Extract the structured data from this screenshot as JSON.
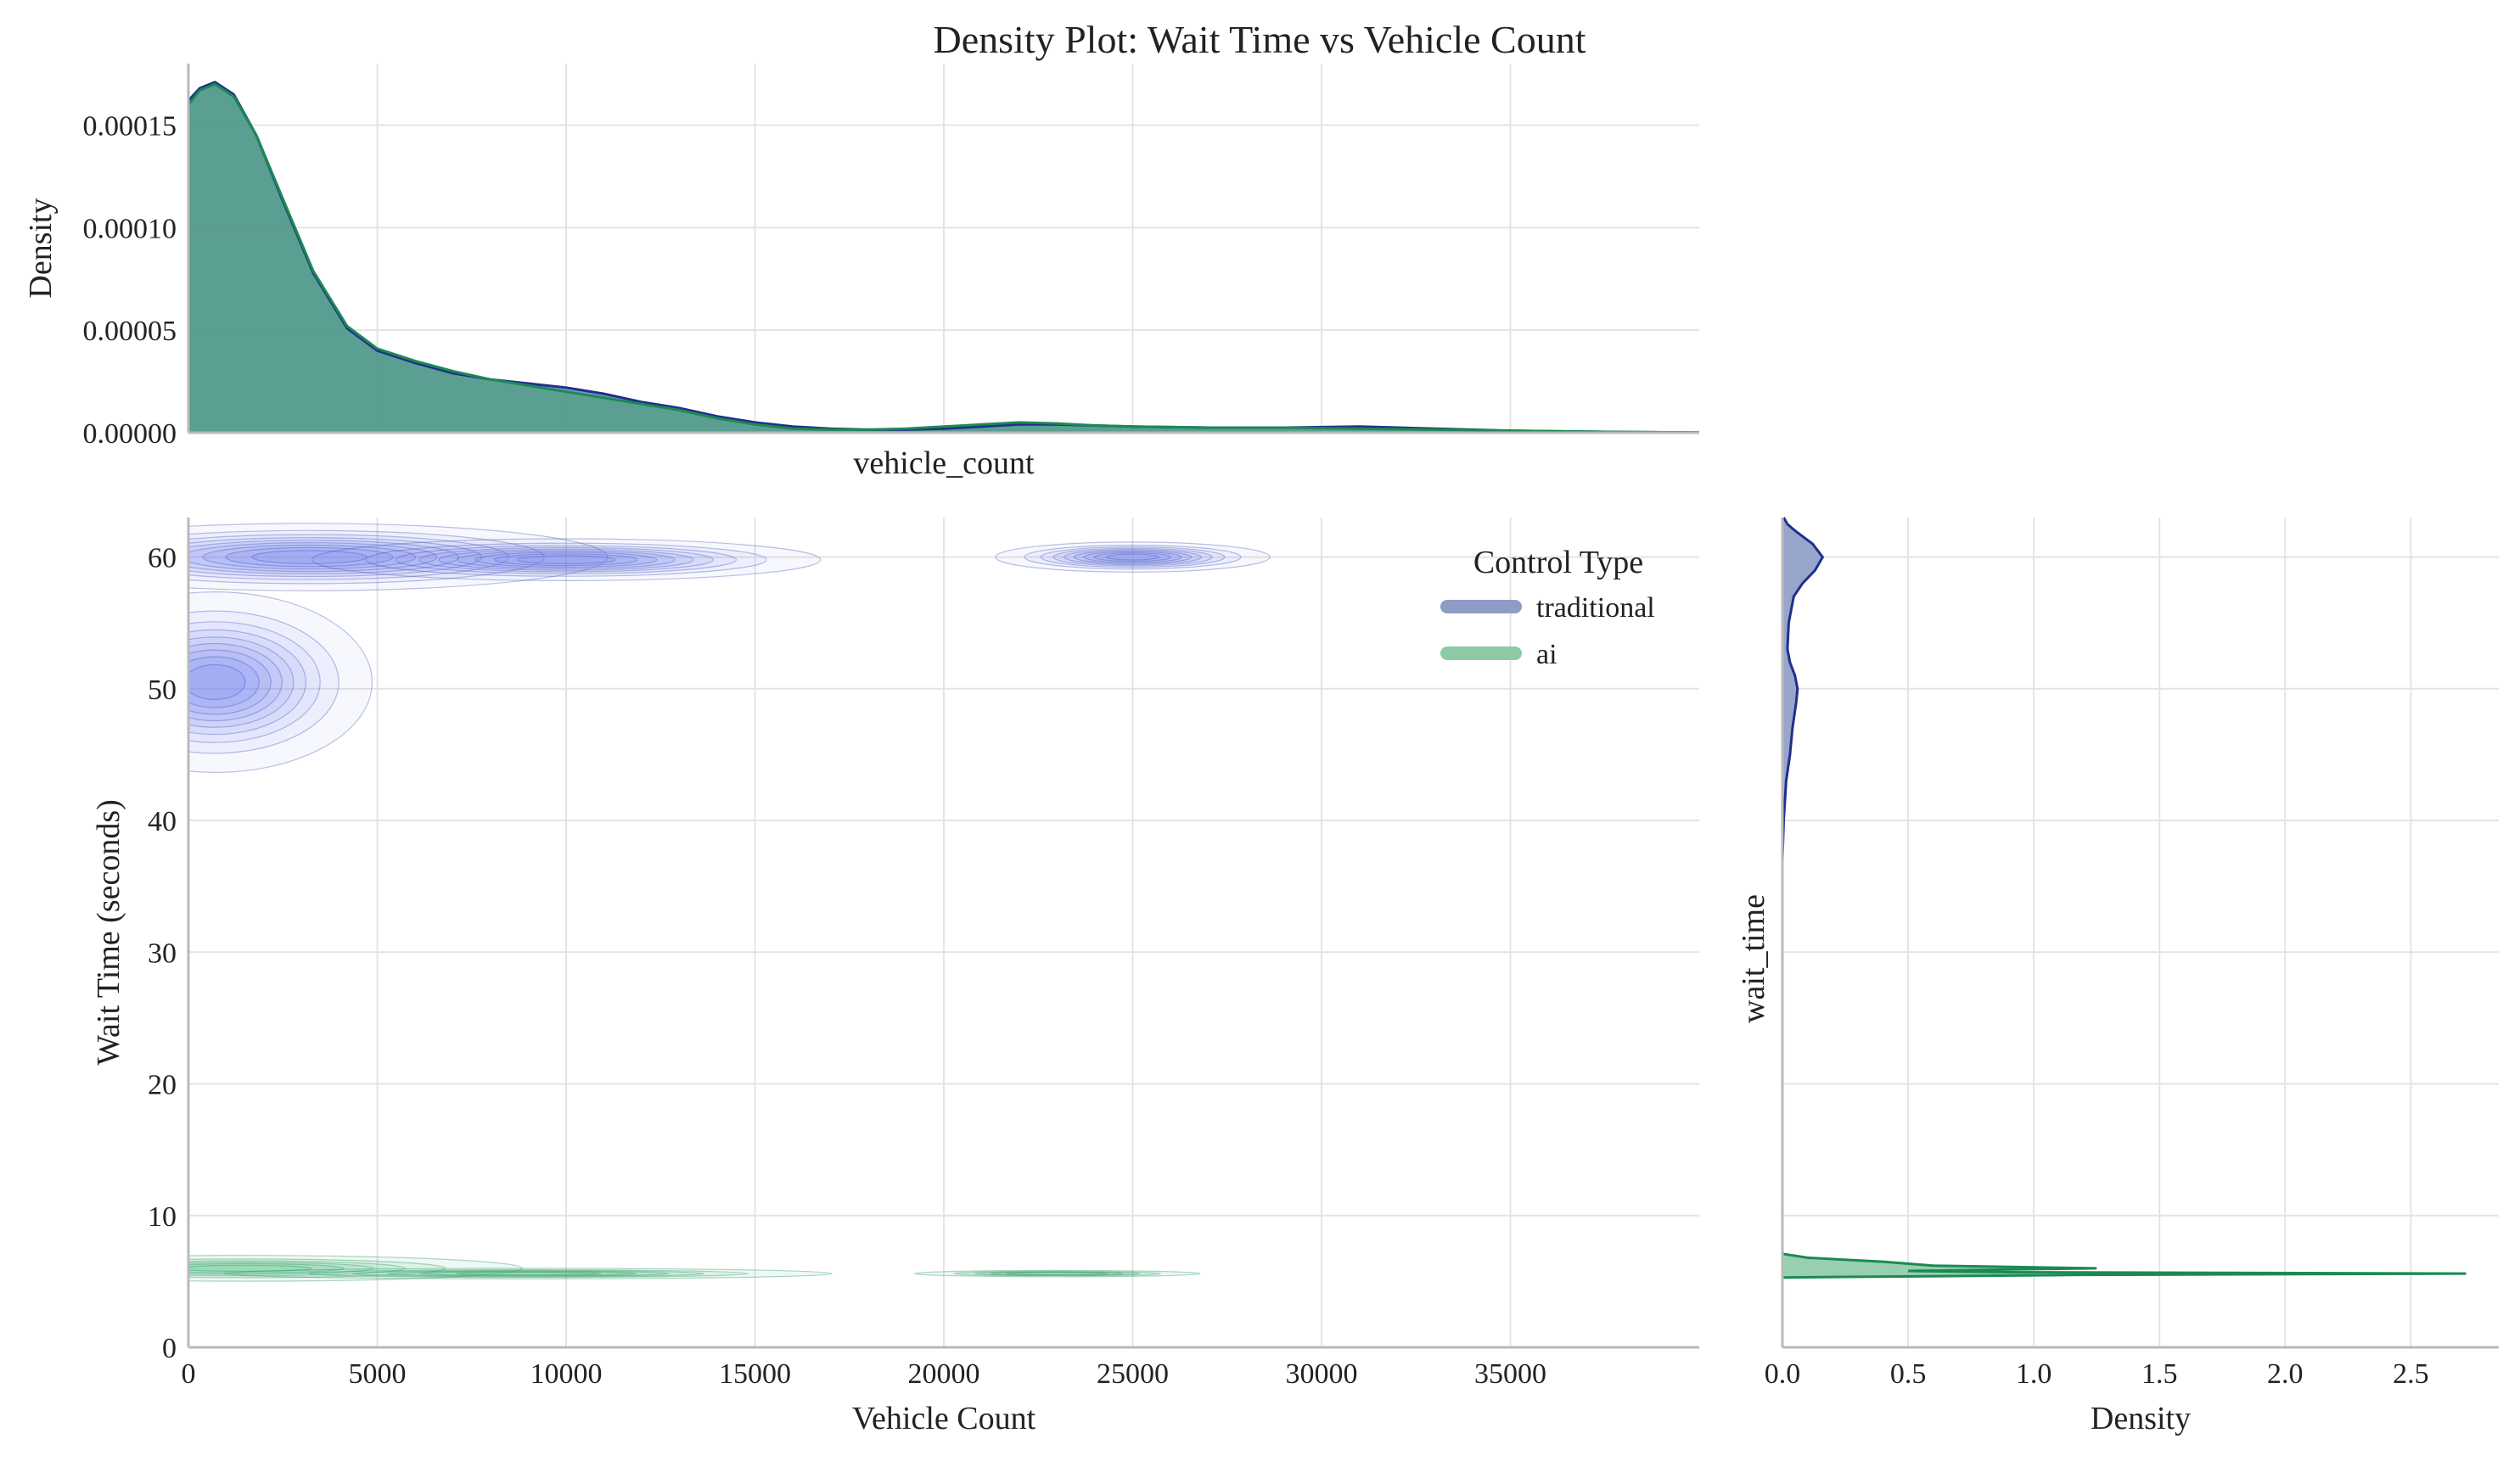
{
  "figure": {
    "title": "Density Plot: Wait Time vs Vehicle Count"
  },
  "legend": {
    "title": "Control Type",
    "entries": [
      {
        "label": "traditional",
        "color": "#8e9cc6"
      },
      {
        "label": "ai",
        "color": "#8ccaa6"
      }
    ],
    "placement": "top-right of joint plot"
  },
  "colors": {
    "traditional_line": "#1f2f8c",
    "traditional_contour": "#6f7ef0",
    "ai_line": "#1b8a52",
    "ai_fill": "#7fd1a5",
    "overlap_fill": "#5b9a8b"
  },
  "chart_data": [
    {
      "type": "area",
      "panel": "top-marginal",
      "xlabel": "vehicle_count",
      "ylabel": "Density",
      "xlim": [
        0,
        40000
      ],
      "ylim": [
        0,
        0.00018
      ],
      "yticks": [
        "0.00000",
        "0.00005",
        "0.00010",
        "0.00015"
      ],
      "grid": true,
      "x": [
        0,
        300,
        700,
        1200,
        1800,
        2500,
        3300,
        4200,
        5000,
        6000,
        7000,
        8000,
        9000,
        10000,
        11000,
        12000,
        13000,
        14000,
        15000,
        16000,
        17000,
        18000,
        19000,
        20000,
        21000,
        22000,
        23000,
        24000,
        25000,
        27000,
        29000,
        31000,
        33000,
        35000,
        37000,
        40000
      ],
      "series": [
        {
          "name": "traditional",
          "values": [
            0.000162,
            0.000168,
            0.000171,
            0.000165,
            0.000145,
            0.000113,
            7.8e-05,
            5.1e-05,
            4e-05,
            3.4e-05,
            2.9e-05,
            2.6e-05,
            2.4e-05,
            2.2e-05,
            1.9e-05,
            1.5e-05,
            1.2e-05,
            8e-06,
            5e-06,
            3e-06,
            2e-06,
            1.5e-06,
            1.5e-06,
            2e-06,
            3e-06,
            4e-06,
            4e-06,
            3.5e-06,
            3e-06,
            2.5e-06,
            2.5e-06,
            3e-06,
            2e-06,
            1e-06,
            5e-07,
            1e-07
          ]
        },
        {
          "name": "ai",
          "values": [
            0.00016,
            0.000167,
            0.00017,
            0.000164,
            0.000145,
            0.000114,
            7.9e-05,
            5.2e-05,
            4.1e-05,
            3.5e-05,
            3e-05,
            2.6e-05,
            2.3e-05,
            2e-05,
            1.7e-05,
            1.4e-05,
            1.1e-05,
            7e-06,
            4e-06,
            2e-06,
            1.5e-06,
            1.5e-06,
            2e-06,
            3e-06,
            4e-06,
            5e-06,
            4.5e-06,
            3.5e-06,
            3e-06,
            2.5e-06,
            2.5e-06,
            2e-06,
            1.5e-06,
            1e-06,
            5e-07,
            1e-07
          ]
        }
      ]
    },
    {
      "type": "contour",
      "panel": "joint",
      "xlabel": "Vehicle Count",
      "ylabel": "Wait Time (seconds)",
      "xlim": [
        0,
        40000
      ],
      "ylim": [
        0,
        63
      ],
      "xticks": [
        0,
        5000,
        10000,
        15000,
        20000,
        25000,
        30000,
        35000
      ],
      "yticks": [
        0,
        10,
        20,
        30,
        40,
        50,
        60
      ],
      "grid": true,
      "series": [
        {
          "name": "traditional",
          "modes": [
            {
              "x": 700,
              "y": 50.5,
              "sx": 1700,
              "sy": 2.8,
              "w": 1.0
            },
            {
              "x": 3200,
              "y": 60.0,
              "sx": 3400,
              "sy": 1.1,
              "w": 0.9
            },
            {
              "x": 10000,
              "y": 59.8,
              "sx": 5500,
              "sy": 1.3,
              "w": 0.25
            },
            {
              "x": 25000,
              "y": 60.0,
              "sx": 3500,
              "sy": 1.1,
              "w": 0.18
            }
          ]
        },
        {
          "name": "ai",
          "modes": [
            {
              "x": 1500,
              "y": 6.0,
              "sx": 3000,
              "sy": 0.4,
              "w": 1.0
            },
            {
              "x": 9000,
              "y": 5.6,
              "sx": 6000,
              "sy": 0.3,
              "w": 0.3
            },
            {
              "x": 23000,
              "y": 5.6,
              "sx": 4000,
              "sy": 0.25,
              "w": 0.15
            }
          ]
        }
      ]
    },
    {
      "type": "area",
      "panel": "right-marginal",
      "orientation": "horizontal",
      "xlabel": "Density",
      "ylabel": "wait_time",
      "xlim": [
        0,
        2.85
      ],
      "ylim": [
        0,
        63
      ],
      "xticks": [
        "0.0",
        "0.5",
        "1.0",
        "1.5",
        "2.0",
        "2.5"
      ],
      "grid": true,
      "y": [
        37,
        40,
        43,
        45,
        47,
        49,
        50,
        51,
        52,
        53,
        55,
        57,
        58,
        59,
        60,
        61,
        62,
        62.5,
        63
      ],
      "series": [
        {
          "name": "traditional",
          "values": [
            0.0,
            0.005,
            0.015,
            0.03,
            0.04,
            0.055,
            0.06,
            0.05,
            0.03,
            0.02,
            0.025,
            0.045,
            0.08,
            0.13,
            0.16,
            0.12,
            0.05,
            0.02,
            0.005
          ]
        },
        {
          "name": "ai",
          "y": [
            5.3,
            5.5,
            5.6,
            5.7,
            5.8,
            6.0,
            6.2,
            6.5,
            6.8,
            7.1
          ],
          "values": [
            0.0,
            1.2,
            2.72,
            0.9,
            0.5,
            1.25,
            0.6,
            0.4,
            0.1,
            0.0
          ]
        }
      ]
    }
  ]
}
